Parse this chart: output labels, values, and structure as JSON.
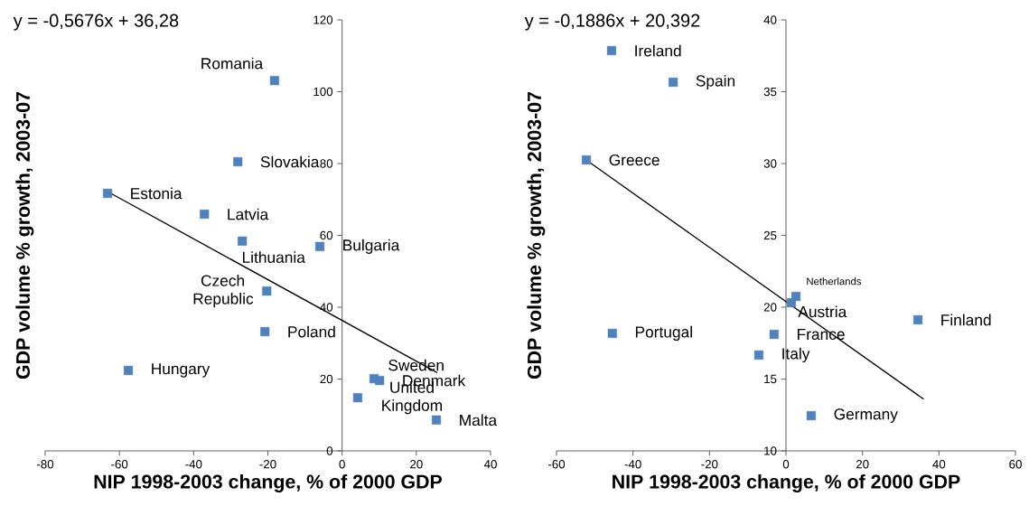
{
  "chart_data": [
    {
      "type": "scatter",
      "xlabel": "NIP 1998-2003 change, % of 2000 GDP",
      "ylabel": "GDP volume % growth, 2003-07",
      "xlim": [
        -80,
        40
      ],
      "ylim": [
        0,
        120
      ],
      "xticks": [
        -80,
        -60,
        -40,
        -20,
        0,
        20,
        40
      ],
      "yticks": [
        0,
        20,
        40,
        60,
        80,
        100,
        120
      ],
      "series": [
        {
          "type": "scatter",
          "marker": "square",
          "color": "#4f81bd",
          "x": [
            -18.2,
            -28.1,
            -63.2,
            -37.1,
            -26.9,
            -6.0,
            -20.3,
            -20.8,
            -57.6,
            8.6,
            10.1,
            4.2,
            25.4
          ],
          "values": [
            103.1,
            80.5,
            71.7,
            65.9,
            58.4,
            56.9,
            44.5,
            33.2,
            22.4,
            20.1,
            19.6,
            14.8,
            8.6
          ]
        },
        {
          "type": "line",
          "color": "#000000",
          "x": [
            -63.2,
            25.6
          ],
          "values": [
            72.2,
            21.8
          ]
        }
      ],
      "annotations": [
        "y = -0,5676x + 36,28",
        {
          "text": "Romania",
          "x": -18.2,
          "y": 103.1
        },
        {
          "text": "Slovakia",
          "x": -28.1,
          "y": 80.5
        },
        {
          "text": "Estonia",
          "x": -63.2,
          "y": 71.7
        },
        {
          "text": "Latvia",
          "x": -37.1,
          "y": 65.9
        },
        {
          "text": "Lithuania",
          "x": -26.9,
          "y": 58.4
        },
        {
          "text": "Bulgaria",
          "x": -6.0,
          "y": 56.9
        },
        {
          "text": "Czech Republic",
          "x": -20.3,
          "y": 44.5
        },
        {
          "text": "Poland",
          "x": -20.8,
          "y": 33.2
        },
        {
          "text": "Hungary",
          "x": -57.6,
          "y": 22.4
        },
        {
          "text": "Sweden",
          "x": 8.6,
          "y": 20.1
        },
        {
          "text": "Denmark",
          "x": 10.1,
          "y": 19.6
        },
        {
          "text": "United Kingdom",
          "x": 4.2,
          "y": 14.8
        },
        {
          "text": "Malta",
          "x": 25.4,
          "y": 8.6
        }
      ]
    },
    {
      "type": "scatter",
      "xlabel": "NIP 1998-2003 change, % of 2000 GDP",
      "ylabel": "GDP volume % growth, 2003-07",
      "xlim": [
        -60,
        60
      ],
      "ylim": [
        10,
        40
      ],
      "xticks": [
        -60,
        -40,
        -20,
        0,
        20,
        40,
        60
      ],
      "yticks": [
        10,
        15,
        20,
        25,
        30,
        35,
        40
      ],
      "series": [
        {
          "type": "scatter",
          "marker": "square",
          "color": "#4f81bd",
          "x": [
            -45.6,
            -29.5,
            -52.2,
            2.6,
            1.4,
            34.5,
            -45.4,
            -3.1,
            -7.1,
            6.6
          ],
          "values": [
            37.86,
            35.66,
            30.25,
            20.75,
            20.31,
            19.12,
            18.18,
            18.11,
            16.67,
            12.45
          ]
        },
        {
          "type": "line",
          "color": "#000000",
          "x": [
            -52.0,
            36.0
          ],
          "values": [
            30.2,
            13.6
          ]
        }
      ],
      "annotations": [
        "y = -0,1886x + 20,392",
        {
          "text": "Ireland",
          "x": -45.6,
          "y": 37.86
        },
        {
          "text": "Spain",
          "x": -29.5,
          "y": 35.66
        },
        {
          "text": "Greece",
          "x": -52.2,
          "y": 30.25
        },
        {
          "text": "Netherlands",
          "x": 2.6,
          "y": 20.75
        },
        {
          "text": "Austria",
          "x": 1.4,
          "y": 20.31
        },
        {
          "text": "Finland",
          "x": 34.5,
          "y": 19.12
        },
        {
          "text": "Portugal",
          "x": -45.4,
          "y": 18.18
        },
        {
          "text": "France",
          "x": -3.1,
          "y": 18.11
        },
        {
          "text": "Italy",
          "x": -7.1,
          "y": 16.67
        },
        {
          "text": "Germany",
          "x": 6.6,
          "y": 12.45
        }
      ]
    }
  ]
}
